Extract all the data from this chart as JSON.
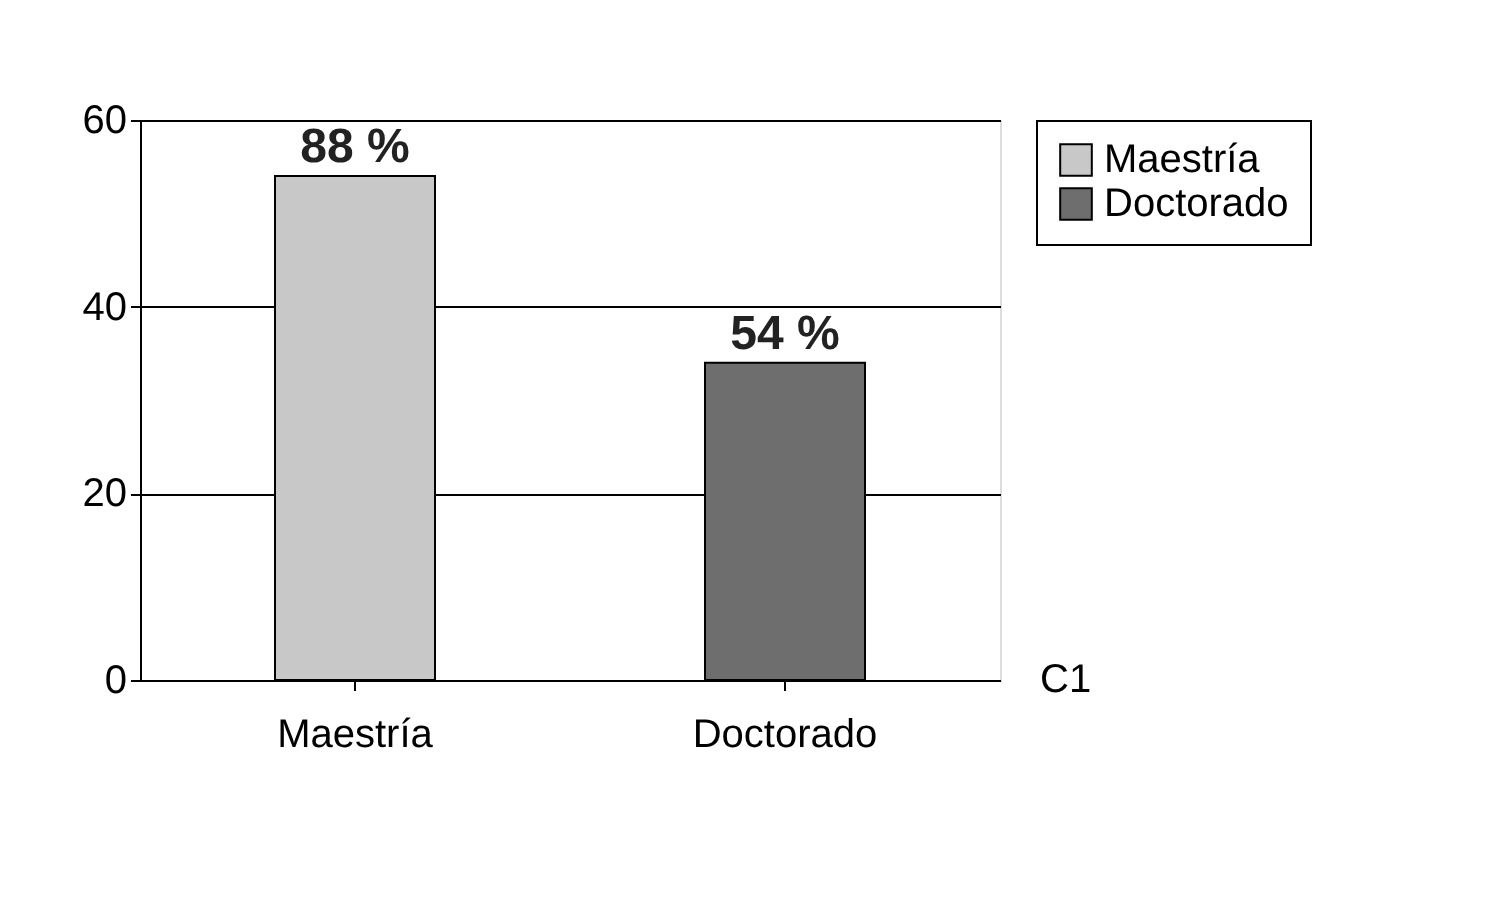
{
  "chart_data": {
    "type": "bar",
    "categories": [
      "Maestría",
      "Doctorado"
    ],
    "series": [
      {
        "name": "Maestría",
        "color": "#c8c8c8",
        "values": [
          54,
          null
        ]
      },
      {
        "name": "Doctorado",
        "color": "#6e6e6e",
        "values": [
          null,
          34
        ]
      }
    ],
    "ylim": [
      0,
      60
    ],
    "yticks": [
      0,
      20,
      40,
      60
    ],
    "grid": "y",
    "legend": "right",
    "annotations": [
      {
        "text": "88 %",
        "x": "Maestría",
        "y": 54
      },
      {
        "text": "54 %",
        "x": "Doctorado",
        "y": 34
      },
      "C1"
    ]
  }
}
